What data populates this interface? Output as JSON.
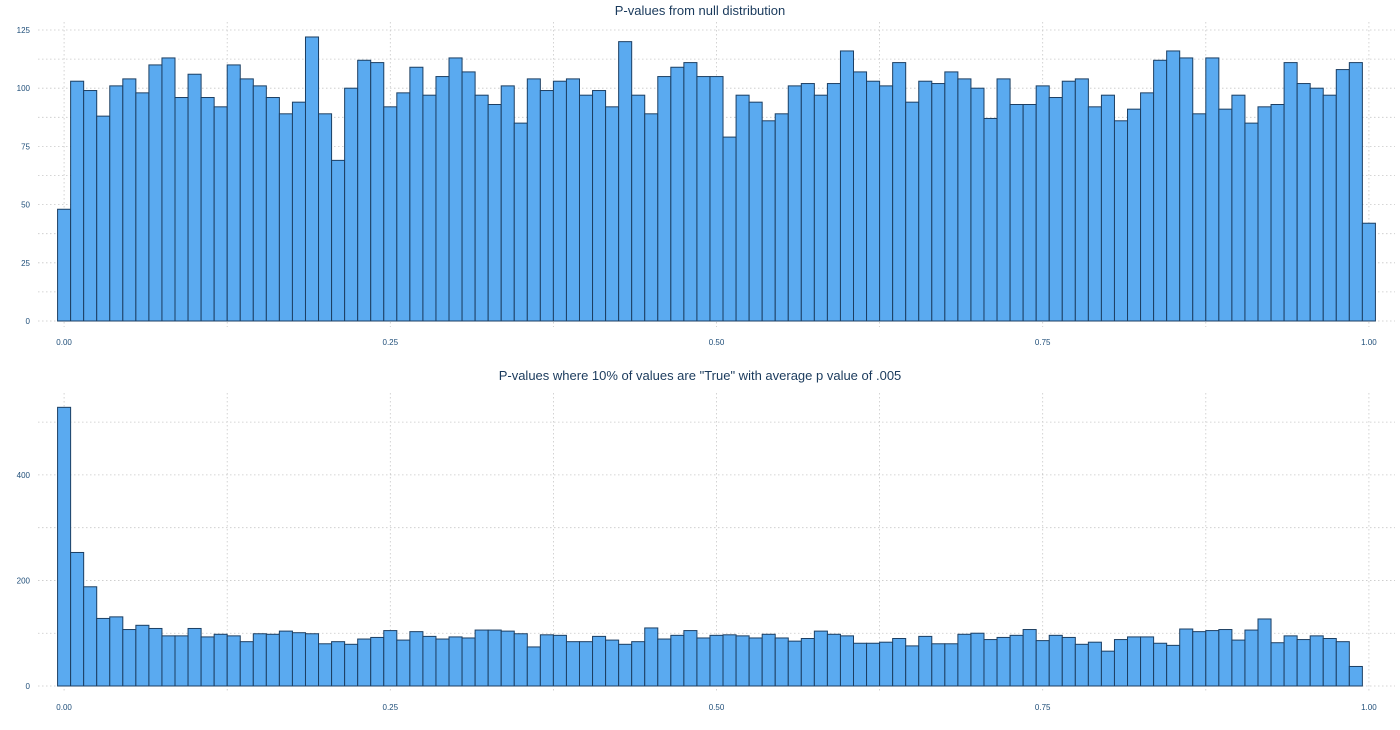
{
  "chart_data": [
    {
      "type": "bar",
      "title": "P-values from null distribution",
      "xlabel": "",
      "ylabel": "",
      "bin_width": 0.01,
      "x": [
        0.0,
        0.01,
        0.02,
        0.03,
        0.04,
        0.05,
        0.06,
        0.07,
        0.08,
        0.09,
        0.1,
        0.11,
        0.12,
        0.13,
        0.14,
        0.15,
        0.16,
        0.17,
        0.18,
        0.19,
        0.2,
        0.21,
        0.22,
        0.23,
        0.24,
        0.25,
        0.26,
        0.27,
        0.28,
        0.29,
        0.3,
        0.31,
        0.32,
        0.33,
        0.34,
        0.35,
        0.36,
        0.37,
        0.38,
        0.39,
        0.4,
        0.41,
        0.42,
        0.43,
        0.44,
        0.45,
        0.46,
        0.47,
        0.48,
        0.49,
        0.5,
        0.51,
        0.52,
        0.53,
        0.54,
        0.55,
        0.56,
        0.57,
        0.58,
        0.59,
        0.6,
        0.61,
        0.62,
        0.63,
        0.64,
        0.65,
        0.66,
        0.67,
        0.68,
        0.69,
        0.7,
        0.71,
        0.72,
        0.73,
        0.74,
        0.75,
        0.76,
        0.77,
        0.78,
        0.79,
        0.8,
        0.81,
        0.82,
        0.83,
        0.84,
        0.85,
        0.86,
        0.87,
        0.88,
        0.89,
        0.9,
        0.91,
        0.92,
        0.93,
        0.94,
        0.95,
        0.96,
        0.97,
        0.98,
        0.99,
        1.0
      ],
      "values": [
        48,
        103,
        99,
        88,
        101,
        104,
        98,
        110,
        113,
        96,
        106,
        96,
        92,
        110,
        104,
        101,
        96,
        89,
        94,
        122,
        89,
        69,
        100,
        112,
        111,
        92,
        98,
        109,
        97,
        105,
        113,
        107,
        97,
        93,
        101,
        85,
        104,
        99,
        103,
        104,
        97,
        99,
        92,
        120,
        97,
        89,
        105,
        109,
        111,
        105,
        105,
        79,
        97,
        94,
        86,
        89,
        101,
        102,
        97,
        102,
        116,
        107,
        103,
        101,
        111,
        94,
        103,
        102,
        107,
        104,
        100,
        87,
        104,
        93,
        93,
        101,
        96,
        103,
        104,
        92,
        97,
        86,
        91,
        98,
        112,
        116,
        113,
        89,
        113,
        91,
        97,
        85,
        92,
        93,
        111,
        102,
        100,
        97,
        108,
        111,
        42
      ],
      "xlim": [
        -0.02,
        1.02
      ],
      "ylim": [
        0,
        125
      ],
      "x_ticks": [
        "0.00",
        "0.25",
        "0.50",
        "0.75",
        "1.00"
      ],
      "x_tick_values": [
        0,
        0.25,
        0.5,
        0.75,
        1.0
      ],
      "y_ticks": [
        "0",
        "25",
        "50",
        "75",
        "100",
        "125"
      ],
      "y_tick_values": [
        0,
        25,
        50,
        75,
        100,
        125
      ],
      "grid": true
    },
    {
      "type": "bar",
      "title": "P-values where 10% of values are \"True\" with average p value of .005",
      "xlabel": "",
      "ylabel": "",
      "bin_width": 0.01,
      "x": [
        0.0,
        0.01,
        0.02,
        0.03,
        0.04,
        0.05,
        0.06,
        0.07,
        0.08,
        0.09,
        0.1,
        0.11,
        0.12,
        0.13,
        0.14,
        0.15,
        0.16,
        0.17,
        0.18,
        0.19,
        0.2,
        0.21,
        0.22,
        0.23,
        0.24,
        0.25,
        0.26,
        0.27,
        0.28,
        0.29,
        0.3,
        0.31,
        0.32,
        0.33,
        0.34,
        0.35,
        0.36,
        0.37,
        0.38,
        0.39,
        0.4,
        0.41,
        0.42,
        0.43,
        0.44,
        0.45,
        0.46,
        0.47,
        0.48,
        0.49,
        0.5,
        0.51,
        0.52,
        0.53,
        0.54,
        0.55,
        0.56,
        0.57,
        0.58,
        0.59,
        0.6,
        0.61,
        0.62,
        0.63,
        0.64,
        0.65,
        0.66,
        0.67,
        0.68,
        0.69,
        0.7,
        0.71,
        0.72,
        0.73,
        0.74,
        0.75,
        0.76,
        0.77,
        0.78,
        0.79,
        0.8,
        0.81,
        0.82,
        0.83,
        0.84,
        0.85,
        0.86,
        0.87,
        0.88,
        0.89,
        0.9,
        0.91,
        0.92,
        0.93,
        0.94,
        0.95,
        0.96,
        0.97,
        0.98,
        0.99,
        1.0
      ],
      "values": [
        528,
        253,
        188,
        128,
        131,
        107,
        115,
        109,
        95,
        95,
        109,
        93,
        98,
        95,
        84,
        99,
        98,
        104,
        101,
        99,
        80,
        84,
        79,
        89,
        92,
        105,
        87,
        103,
        94,
        89,
        93,
        91,
        106,
        106,
        104,
        99,
        74,
        97,
        96,
        84,
        84,
        94,
        87,
        79,
        84,
        110,
        89,
        96,
        105,
        91,
        96,
        97,
        95,
        91,
        98,
        91,
        85,
        90,
        104,
        98,
        95,
        81,
        81,
        83,
        90,
        76,
        94,
        80,
        80,
        98,
        100,
        88,
        92,
        96,
        107,
        86,
        96,
        92,
        79,
        83,
        66,
        88,
        93,
        93,
        81,
        77,
        108,
        103,
        105,
        107,
        87,
        106,
        127,
        82,
        95,
        88,
        95,
        90,
        84,
        37,
        0
      ],
      "xlim": [
        -0.02,
        1.02
      ],
      "ylim": [
        0,
        540
      ],
      "x_ticks": [
        "0.00",
        "0.25",
        "0.50",
        "0.75",
        "1.00"
      ],
      "x_tick_values": [
        0,
        0.25,
        0.5,
        0.75,
        1.0
      ],
      "y_ticks": [
        "0",
        "200",
        "400"
      ],
      "y_tick_values": [
        0,
        200,
        400
      ],
      "grid": true
    }
  ]
}
